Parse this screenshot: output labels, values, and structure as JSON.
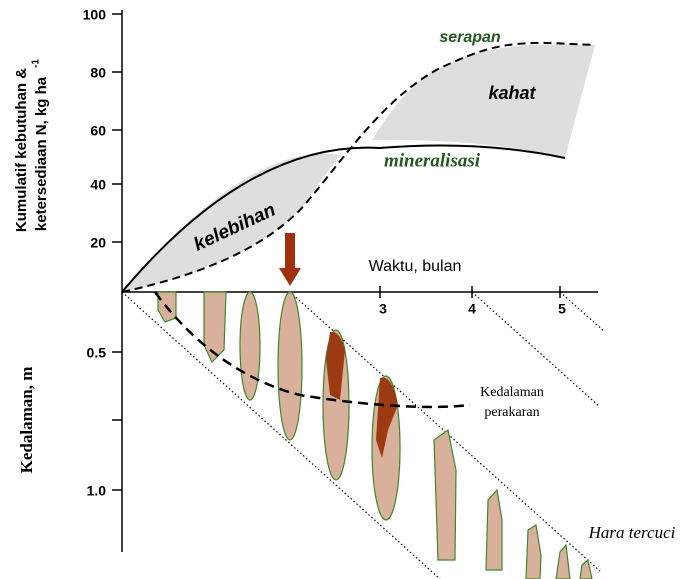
{
  "top_axis": {
    "label_lines": [
      "Kumulatif kebutuhan &",
      "ketersediaan N, kg ha"
    ],
    "label_superscript": "-1",
    "ticks": [
      "100",
      "80",
      "60",
      "40",
      "20"
    ]
  },
  "time_axis": {
    "label": "Waktu, bulan",
    "ticks": [
      "3",
      "4",
      "5"
    ]
  },
  "depth_axis": {
    "label": "Kedalaman, m",
    "ticks": [
      "0.5",
      "1.0"
    ]
  },
  "labels": {
    "serapan": "serapan",
    "kahat": "kahat",
    "mineralisasi": "mineralisasi",
    "kelebihan": "kelebihan",
    "root_depth": [
      "Kedalaman",
      "perakaran"
    ],
    "leached": "Hara tercuci"
  }
}
